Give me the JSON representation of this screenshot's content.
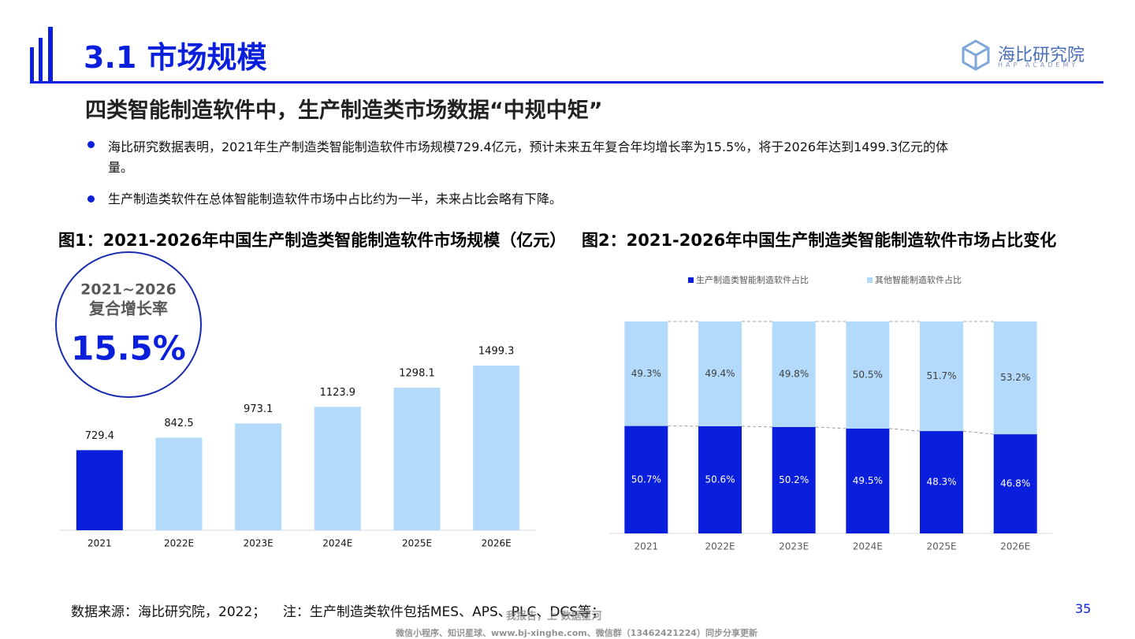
{
  "header": {
    "title": "3.1 市场规模",
    "logo": "海比研究院",
    "logo_sub": "HAP ACADEMY"
  },
  "headline": "四类智能制造软件中，生产制造类市场数据“中规中矩”",
  "bullets": [
    "海比研究数据表明，2021年生产制造类智能制造软件市场规模729.4亿元，预计未来五年复合年均增长率为15.5%，将于2026年达到1499.3亿元的体量。",
    "生产制造类软件在总体智能制造软件市场中占比约为一半，未来占比会略有下降。"
  ],
  "callout": {
    "range": "2021~2026",
    "label": "复合增长率",
    "value": "15.5%"
  },
  "chart_data": [
    {
      "type": "bar",
      "title": "图1：2021-2026年中国生产制造类智能制造软件市场规模（亿元）",
      "categories": [
        "2021",
        "2022E",
        "2023E",
        "2024E",
        "2025E",
        "2026E"
      ],
      "values": [
        729.4,
        842.5,
        973.1,
        1123.9,
        1298.1,
        1499.3
      ],
      "colors": [
        "#0a1fdc",
        "#b3dafa",
        "#b3dafa",
        "#b3dafa",
        "#b3dafa",
        "#b3dafa"
      ],
      "ylim": [
        0,
        1600
      ]
    },
    {
      "type": "stacked_bar",
      "title": "图2：2021-2026年中国生产制造类智能制造软件市场占比变化",
      "categories": [
        "2021",
        "2022E",
        "2023E",
        "2024E",
        "2025E",
        "2026E"
      ],
      "series": [
        {
          "name": "生产制造类智能制造软件占比",
          "color": "#0a1fdc",
          "values": [
            50.7,
            50.6,
            50.2,
            49.5,
            48.3,
            46.8
          ],
          "value_labels": [
            "50.7%",
            "50.6%",
            "50.2%",
            "49.5%",
            "48.3%",
            "46.8%"
          ]
        },
        {
          "name": "其他智能制造软件占比",
          "color": "#b3dafa",
          "values": [
            49.3,
            49.4,
            49.8,
            50.5,
            51.7,
            53.2
          ],
          "value_labels": [
            "49.3%",
            "49.4%",
            "49.8%",
            "50.5%",
            "51.7%",
            "53.2%"
          ]
        }
      ],
      "ylim": [
        0,
        100
      ]
    }
  ],
  "footer": {
    "source": "数据来源：海比研究院，2022；    注：生产制造类软件包括MES、APS、PLC、DCS等；",
    "page": "35",
    "watermark": "我报告，上 数据星河",
    "watermark_sub": "微信小程序、知识星球、www.bj-xinghe.com、微信群（13462421224）同步分享更新"
  }
}
